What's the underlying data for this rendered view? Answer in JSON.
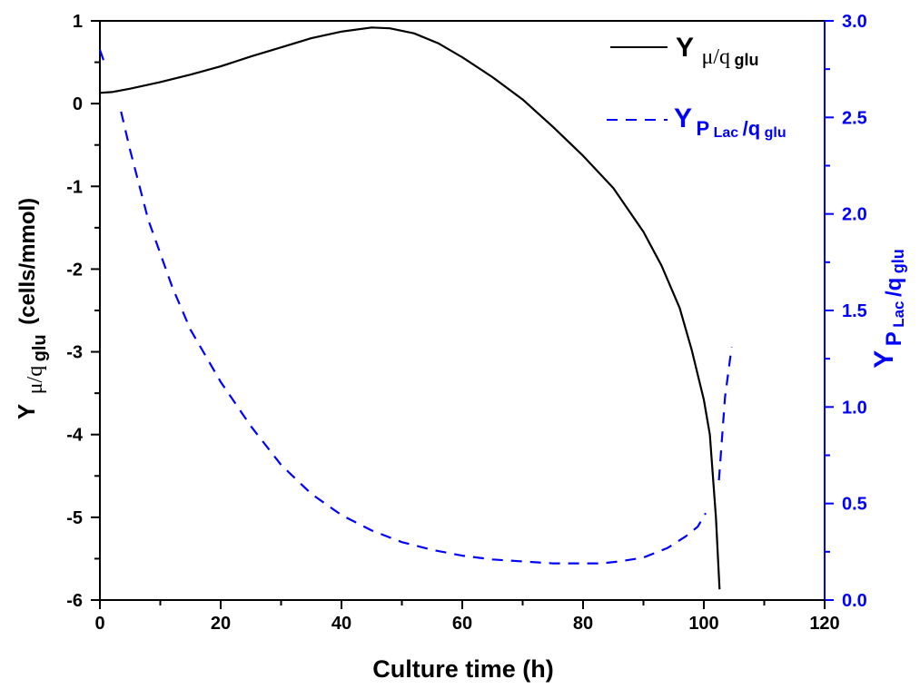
{
  "chart_data": {
    "type": "line",
    "title": "",
    "xlabel": "Culture time (h)",
    "ylabel": {
      "main": "Y",
      "sub": "μ/q",
      "subsub": "glu",
      "unit": "(cells/mmol)"
    },
    "y2label": {
      "main": "Y",
      "sub": "P",
      "subsub": "Lac",
      "sep": "/q",
      "tail": "glu"
    },
    "xlim": [
      0,
      120
    ],
    "ylim": [
      -6,
      1
    ],
    "y2lim": [
      0,
      3.0
    ],
    "x_ticks": [
      "0",
      "20",
      "40",
      "60",
      "80",
      "100",
      "120"
    ],
    "y_ticks": [
      "1",
      "0",
      "-1",
      "-2",
      "-3",
      "-4",
      "-5",
      "-6"
    ],
    "y2_ticks": [
      "3.0",
      "2.5",
      "2.0",
      "1.5",
      "1.0",
      "0.5",
      "0.0"
    ],
    "grid": false,
    "legend_position": "top-right",
    "series": [
      {
        "name": "Y μ/qglu",
        "legend": {
          "main": "Y",
          "sub": "μ/q",
          "subsub": "glu"
        },
        "axis": "left",
        "style": "solid",
        "color": "#000000",
        "x": [
          0,
          2,
          5,
          10,
          15,
          20,
          25,
          30,
          35,
          40,
          45,
          48,
          52,
          56,
          60,
          65,
          70,
          75,
          80,
          85,
          90,
          93,
          96,
          98,
          100,
          101,
          102,
          102.6
        ],
        "y": [
          0.13,
          0.14,
          0.18,
          0.26,
          0.35,
          0.45,
          0.57,
          0.68,
          0.79,
          0.87,
          0.92,
          0.91,
          0.85,
          0.73,
          0.56,
          0.32,
          0.05,
          -0.28,
          -0.63,
          -1.02,
          -1.55,
          -1.96,
          -2.47,
          -2.98,
          -3.58,
          -4.0,
          -5.0,
          -5.87
        ]
      },
      {
        "name": "Y PLac/qglu",
        "legend": {
          "main": "Y",
          "sub": "P",
          "subsub": "Lac",
          "sep": "/q",
          "tail": "glu"
        },
        "axis": "right",
        "style": "dashed",
        "color": "#0000ff",
        "segments": [
          {
            "x": [
              0,
              1
            ],
            "y": [
              2.85,
              2.76
            ]
          },
          {
            "x": [
              3.5,
              5,
              8,
              12,
              15,
              20,
              25,
              30,
              35,
              40,
              45,
              50,
              55,
              60,
              65,
              70,
              75,
              80,
              83,
              86,
              90,
              94,
              97,
              99,
              100.3
            ],
            "y": [
              2.53,
              2.33,
              1.97,
              1.62,
              1.4,
              1.13,
              0.9,
              0.7,
              0.55,
              0.44,
              0.36,
              0.3,
              0.26,
              0.23,
              0.21,
              0.2,
              0.19,
              0.19,
              0.19,
              0.2,
              0.22,
              0.27,
              0.33,
              0.38,
              0.45
            ]
          },
          {
            "x": [
              102.5,
              103.5,
              104.6
            ],
            "y": [
              0.62,
              1.05,
              1.31
            ]
          }
        ]
      }
    ]
  }
}
